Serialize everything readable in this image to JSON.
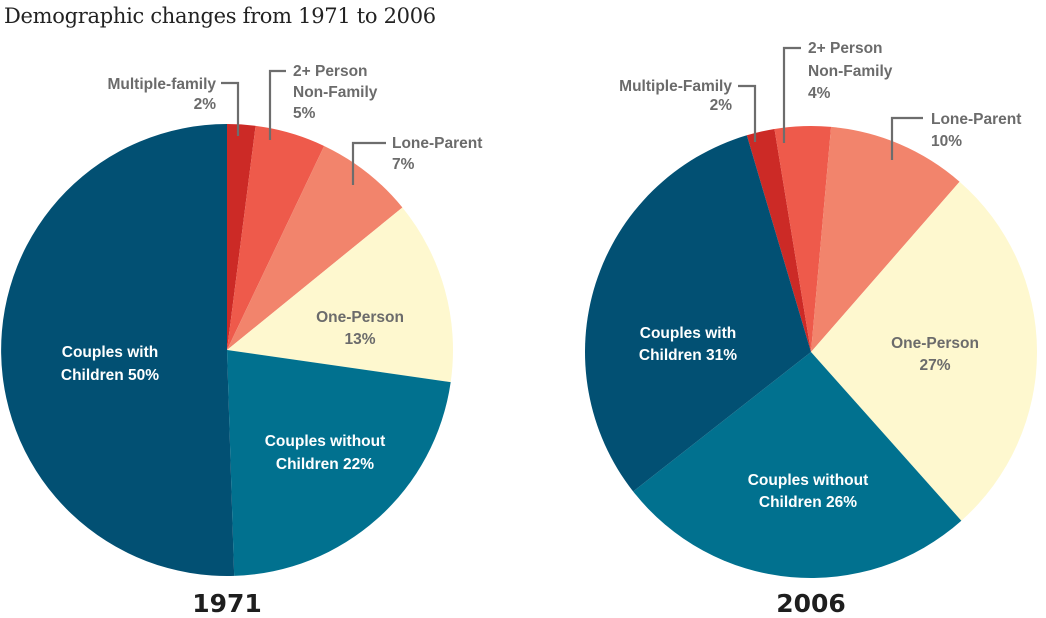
{
  "chart_data": {
    "title": "Demographic changes from 1971 to 2006",
    "charts": [
      {
        "type": "pie",
        "title": "1971",
        "slices": [
          {
            "label": "Multiple-family",
            "value": 2,
            "color": "#cc2a26"
          },
          {
            "label": "2+ Person Non-Family",
            "value": 5,
            "color": "#ee5a4b"
          },
          {
            "label": "Lone-Parent",
            "value": 7,
            "color": "#f2846c"
          },
          {
            "label": "One-Person",
            "value": 13,
            "color": "#fef8cf"
          },
          {
            "label": "Couples without Children",
            "value": 22,
            "color": "#01718f"
          },
          {
            "label": "Couples with Children",
            "value": 50,
            "color": "#025073"
          }
        ],
        "labels": {
          "multiple_family": [
            "Multiple-family",
            "2%"
          ],
          "two_person": [
            "2+ Person",
            "Non-Family",
            "5%"
          ],
          "lone_parent": [
            "Lone-Parent",
            "7%"
          ],
          "one_person": [
            "One-Person",
            "13%"
          ],
          "couples_without": [
            "Couples without",
            "Children 22%"
          ],
          "couples_with": [
            "Couples with",
            "Children 50%"
          ]
        }
      },
      {
        "type": "pie",
        "title": "2006",
        "slices": [
          {
            "label": "Multiple-Family",
            "value": 2,
            "color": "#cc2a26"
          },
          {
            "label": "2+ Person Non-Family",
            "value": 4,
            "color": "#ee5a4b"
          },
          {
            "label": "Lone-Parent",
            "value": 10,
            "color": "#f2846c"
          },
          {
            "label": "One-Person",
            "value": 27,
            "color": "#fef8cf"
          },
          {
            "label": "Couples without Children",
            "value": 26,
            "color": "#01718f"
          },
          {
            "label": "Couples with Children",
            "value": 31,
            "color": "#025073"
          }
        ],
        "labels": {
          "multiple_family": [
            "Multiple-Family",
            "2%"
          ],
          "two_person": [
            "2+ Person",
            "Non-Family",
            "4%"
          ],
          "lone_parent": [
            "Lone-Parent",
            "10%"
          ],
          "one_person": [
            "One-Person",
            "27%"
          ],
          "couples_without": [
            "Couples without",
            "Children 26%"
          ],
          "couples_with": [
            "Couples with",
            "Children 31%"
          ]
        }
      }
    ]
  }
}
